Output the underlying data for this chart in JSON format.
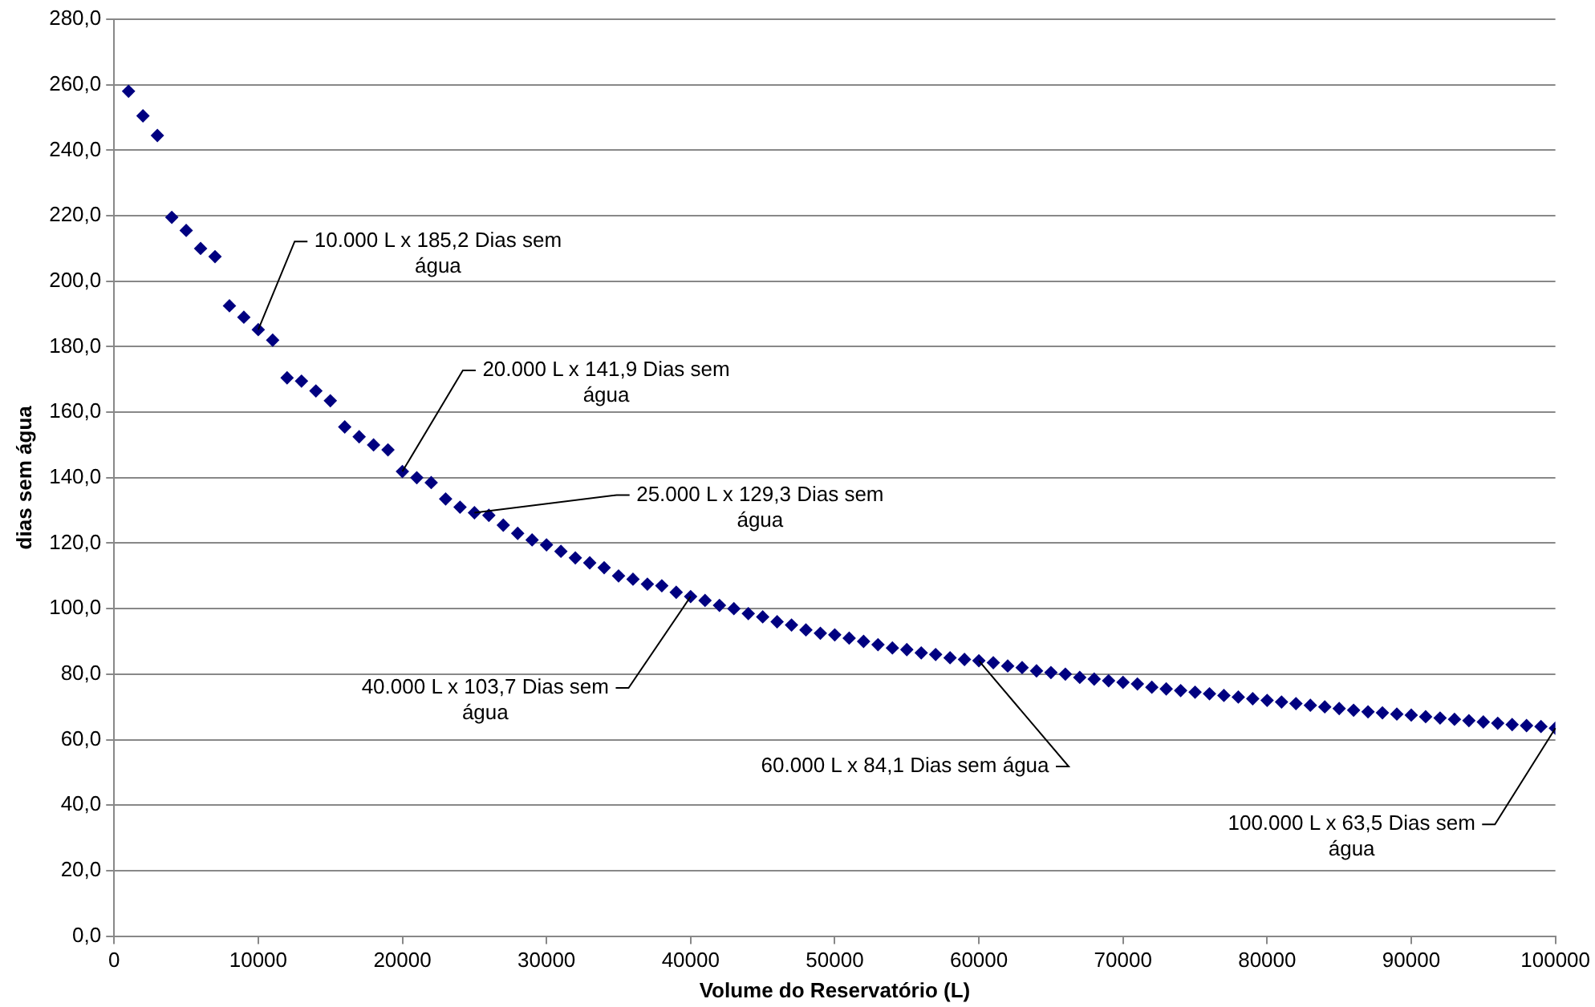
{
  "chart_data": {
    "type": "scatter",
    "xlabel": "Volume do Reservatório (L)",
    "ylabel": "dias sem água",
    "x": [
      1000,
      2000,
      3000,
      4000,
      5000,
      6000,
      7000,
      8000,
      9000,
      10000,
      11000,
      12000,
      13000,
      14000,
      15000,
      16000,
      17000,
      18000,
      19000,
      20000,
      21000,
      22000,
      23000,
      24000,
      25000,
      26000,
      27000,
      28000,
      29000,
      30000,
      31000,
      32000,
      33000,
      34000,
      35000,
      36000,
      37000,
      38000,
      39000,
      40000,
      41000,
      42000,
      43000,
      44000,
      45000,
      46000,
      47000,
      48000,
      49000,
      50000,
      51000,
      52000,
      53000,
      54000,
      55000,
      56000,
      57000,
      58000,
      59000,
      60000,
      61000,
      62000,
      63000,
      64000,
      65000,
      66000,
      67000,
      68000,
      69000,
      70000,
      71000,
      72000,
      73000,
      74000,
      75000,
      76000,
      77000,
      78000,
      79000,
      80000,
      81000,
      82000,
      83000,
      84000,
      85000,
      86000,
      87000,
      88000,
      89000,
      90000,
      91000,
      92000,
      93000,
      94000,
      95000,
      96000,
      97000,
      98000,
      99000,
      100000
    ],
    "series": [
      {
        "color": "#000080",
        "values": [
          258,
          250.5,
          244.5,
          219.5,
          215.5,
          210,
          207.5,
          192.5,
          189,
          185.2,
          182,
          170.5,
          169.5,
          166.5,
          163.5,
          155.5,
          152.5,
          150,
          148.5,
          141.9,
          140,
          138.5,
          133.5,
          131,
          129.3,
          128.5,
          125.5,
          123,
          121,
          119.5,
          117.5,
          115.5,
          114,
          112.5,
          110,
          109,
          107.5,
          107,
          105,
          103.7,
          102.5,
          101,
          100,
          98.5,
          97.5,
          96,
          95,
          93.5,
          92.5,
          92,
          91,
          90,
          89,
          88,
          87.5,
          86.5,
          86,
          85,
          84.5,
          84.1,
          83.5,
          82.5,
          82,
          81,
          80.5,
          80,
          79,
          78.5,
          78,
          77.5,
          77,
          76,
          75.5,
          75,
          74.5,
          74,
          73.5,
          73,
          72.5,
          72,
          71.5,
          71,
          70.5,
          70,
          69.5,
          69,
          68.5,
          68.2,
          67.8,
          67.5,
          67,
          66.6,
          66.2,
          65.8,
          65.4,
          65,
          64.6,
          64.3,
          64,
          63.5
        ]
      }
    ],
    "xlim": [
      0,
      100000
    ],
    "xticks": [
      0,
      10000,
      20000,
      30000,
      40000,
      50000,
      60000,
      70000,
      80000,
      90000,
      100000
    ],
    "ylim": [
      0,
      280
    ],
    "yticks": [
      {
        "value": 0,
        "label": "0,0"
      },
      {
        "value": 20,
        "label": "20,0"
      },
      {
        "value": 40,
        "label": "40,0"
      },
      {
        "value": 60,
        "label": "60,0"
      },
      {
        "value": 80,
        "label": "80,0"
      },
      {
        "value": 100,
        "label": "100,0"
      },
      {
        "value": 120,
        "label": "120,0"
      },
      {
        "value": 140,
        "label": "140,0"
      },
      {
        "value": 160,
        "label": "160,0"
      },
      {
        "value": 180,
        "label": "180,0"
      },
      {
        "value": 200,
        "label": "200,0"
      },
      {
        "value": 220,
        "label": "220,0"
      },
      {
        "value": 240,
        "label": "240,0"
      },
      {
        "value": 260,
        "label": "260,0"
      },
      {
        "value": 280,
        "label": "280,0"
      }
    ],
    "grid": "y",
    "legend": false,
    "marker": "diamond",
    "annotations": [
      {
        "text": "10.000 L x 185,2 Dias sem água",
        "x": 10000,
        "y": 185.2
      },
      {
        "text": "20.000 L x 141,9 Dias sem água",
        "x": 20000,
        "y": 141.9
      },
      {
        "text": "25.000 L x 129,3 Dias sem água",
        "x": 25000,
        "y": 129.3
      },
      {
        "text": "40.000 L x 103,7 Dias sem água",
        "x": 40000,
        "y": 103.7
      },
      {
        "text": "60.000 L x 84,1 Dias sem água",
        "x": 60000,
        "y": 84.1
      },
      {
        "text": "100.000 L x 63,5 Dias sem água",
        "x": 100000,
        "y": 63.5
      }
    ]
  }
}
